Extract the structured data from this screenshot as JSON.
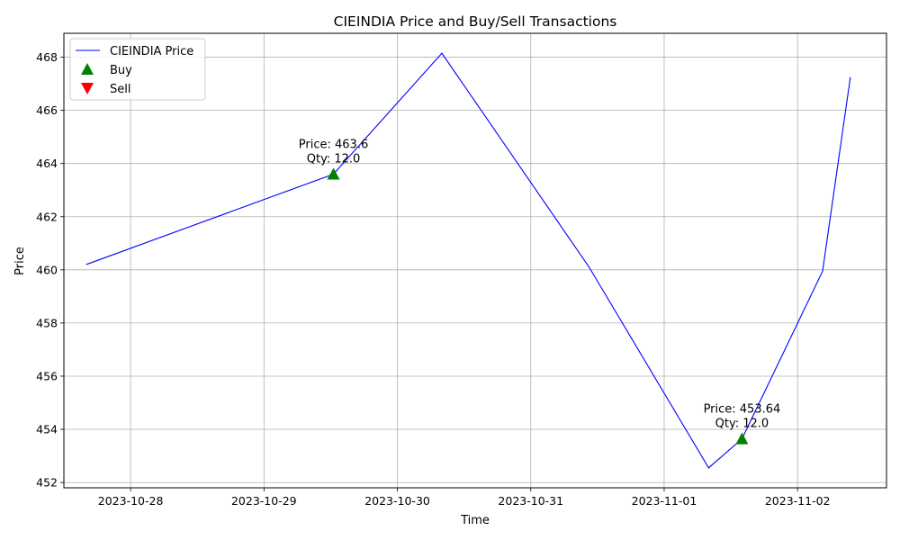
{
  "chart_data": {
    "type": "line",
    "title": "CIEINDIA Price and Buy/Sell Transactions",
    "xlabel": "Time",
    "ylabel": "Price",
    "grid": true,
    "legend_position": "top-left",
    "xlim": [
      "2023-10-27 12:00",
      "2023-11-02 16:00"
    ],
    "ylim": [
      451.8,
      468.9
    ],
    "x_ticks": [
      "2023-10-28",
      "2023-10-29",
      "2023-10-30",
      "2023-10-31",
      "2023-11-01",
      "2023-11-02"
    ],
    "y_ticks": [
      452,
      454,
      456,
      458,
      460,
      462,
      464,
      466,
      468
    ],
    "series": [
      {
        "name": "CIEINDIA Price",
        "color": "#0000ff",
        "points": [
          {
            "x": "2023-10-27 16:00",
            "y": 460.2
          },
          {
            "x": "2023-10-29 12:30",
            "y": 463.6
          },
          {
            "x": "2023-10-30 08:00",
            "y": 468.15
          },
          {
            "x": "2023-10-31 10:30",
            "y": 460.1
          },
          {
            "x": "2023-11-01 08:00",
            "y": 452.55
          },
          {
            "x": "2023-11-01 14:00",
            "y": 453.64
          },
          {
            "x": "2023-11-02 04:30",
            "y": 459.95
          },
          {
            "x": "2023-11-02 09:30",
            "y": 467.25
          }
        ]
      }
    ],
    "markers": [
      {
        "name": "Buy",
        "color": "#008000",
        "shape": "triangle-up",
        "points": [
          {
            "x": "2023-10-29 12:30",
            "y": 463.6,
            "label_lines": [
              "Price: 463.6",
              "Qty: 12.0"
            ]
          },
          {
            "x": "2023-11-01 14:00",
            "y": 453.64,
            "label_lines": [
              "Price: 453.64",
              "Qty: 12.0"
            ]
          }
        ]
      },
      {
        "name": "Sell",
        "color": "#ff0000",
        "shape": "triangle-down",
        "points": []
      }
    ]
  }
}
